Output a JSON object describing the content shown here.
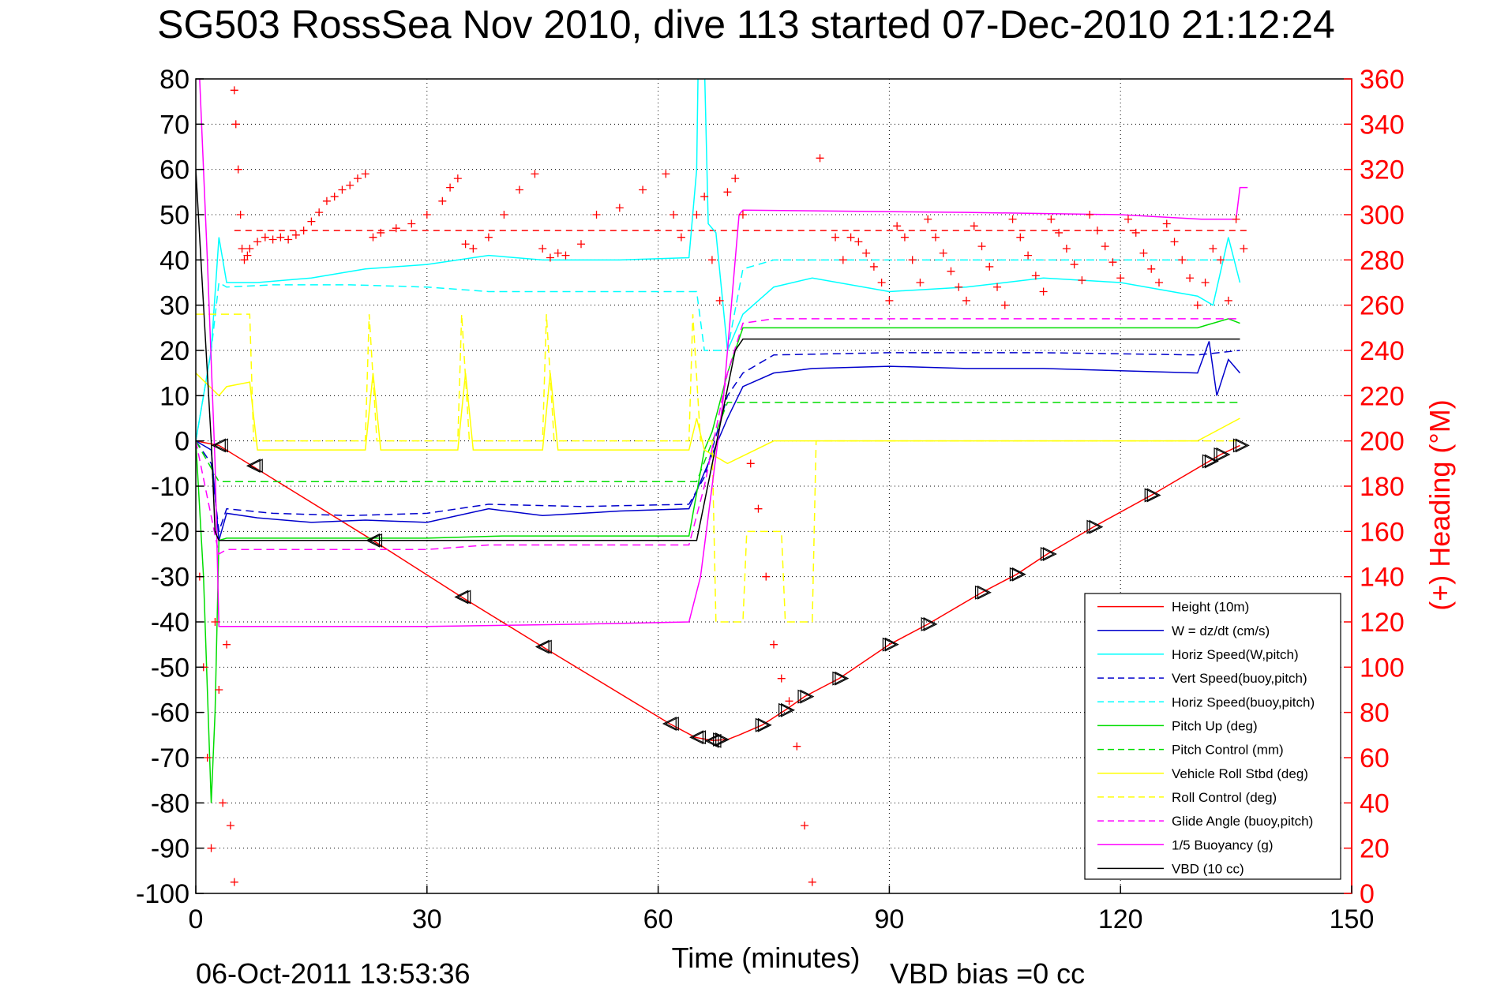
{
  "title": "SG503 RossSea Nov 2010, dive 113 started 07-Dec-2010 21:12:24",
  "footer": {
    "date": "06-Oct-2011 13:53:36",
    "vbd_bias": "VBD bias =0 cc"
  },
  "chart_data": {
    "type": "line",
    "xlabel": "Time (minutes)",
    "ylabel_right": "(+) Heading (°M)",
    "xlim": [
      0,
      150
    ],
    "ylim": [
      -100,
      80
    ],
    "ylim_right": [
      0,
      360
    ],
    "xticks": [
      "0",
      "30",
      "60",
      "90",
      "120",
      "150"
    ],
    "yticks": [
      "80",
      "70",
      "60",
      "50",
      "40",
      "30",
      "20",
      "10",
      "0",
      "-10",
      "-20",
      "-30",
      "-40",
      "-50",
      "-60",
      "-70",
      "-80",
      "-90",
      "-100"
    ],
    "yticks_right": [
      "360",
      "340",
      "320",
      "300",
      "280",
      "260",
      "240",
      "220",
      "200",
      "180",
      "160",
      "140",
      "120",
      "100",
      "80",
      "60",
      "40",
      "20",
      "0"
    ],
    "grid": true,
    "legend_position": "bottom-right",
    "colors": {
      "red": "#ff0000",
      "blue": "#0000cc",
      "cyan": "#00ffff",
      "green": "#00dd00",
      "yellow": "#ffff00",
      "magenta": "#ff00ff",
      "black": "#000000"
    },
    "series": [
      {
        "name": "Height (10m)",
        "color": "#ff0000",
        "dash": "solid",
        "x": [
          0,
          3,
          23,
          34.5,
          45,
          61.5,
          64.8,
          67,
          69,
          70.5,
          73.5,
          76.5,
          79,
          83.5,
          90,
          95,
          102,
          106.5,
          110.5,
          116.5,
          124,
          131.5,
          133,
          135.5
        ],
        "y": [
          0,
          -1,
          -22,
          -34.5,
          -45.5,
          -62.5,
          -65.5,
          -66.2,
          -66,
          -65,
          -62.8,
          -59.5,
          -56.5,
          -52.5,
          -45,
          -40.5,
          -33.5,
          -29.5,
          -25,
          -19,
          -12,
          -4.5,
          -3,
          -1
        ]
      },
      {
        "name": "W = dz/dt (cm/s)",
        "color": "#0000cc",
        "dash": "solid",
        "x": [
          0,
          1,
          2,
          2.5,
          3,
          4,
          8,
          15,
          22,
          30,
          38,
          45,
          55,
          64,
          65,
          67,
          69,
          71,
          75,
          80,
          90,
          100,
          110,
          120,
          130,
          131.5,
          132.5,
          134,
          135.5
        ],
        "y": [
          0,
          -1,
          -2,
          -12,
          -22,
          -16,
          -17,
          -18,
          -17.5,
          -18,
          -15,
          -16.5,
          -15.5,
          -15,
          -11,
          -3,
          5,
          12,
          15,
          16,
          16.5,
          16,
          16,
          15.5,
          15,
          22,
          10,
          18,
          15
        ]
      },
      {
        "name": "Horiz Speed(W,pitch)",
        "color": "#00ffff",
        "dash": "solid",
        "x": [
          0,
          2,
          3,
          4,
          8,
          15,
          22,
          30,
          38,
          45,
          55,
          64,
          65,
          65.5,
          66.5,
          67.5,
          69,
          71,
          75,
          80,
          90,
          100,
          110,
          120,
          130,
          132,
          134,
          135.5
        ],
        "y": [
          0,
          20,
          45,
          35,
          35,
          36,
          38,
          39,
          41,
          40,
          40,
          40.5,
          60,
          120,
          48,
          46,
          20,
          28,
          34,
          36,
          33,
          34,
          36,
          35,
          32,
          30,
          45,
          35
        ]
      },
      {
        "name": "Vert Speed(buoy,pitch)",
        "color": "#0000cc",
        "dash": "dashed",
        "x": [
          0,
          2,
          3,
          4,
          10,
          20,
          30,
          38,
          50,
          64,
          66,
          69,
          71,
          75,
          90,
          110,
          130,
          135.5
        ],
        "y": [
          0,
          -5,
          -20,
          -15,
          -16,
          -16.5,
          -16,
          -14,
          -14.5,
          -14,
          -8,
          10,
          15,
          19,
          19.5,
          19.5,
          19,
          20
        ]
      },
      {
        "name": "Horiz Speed(buoy,pitch)",
        "color": "#00ffff",
        "dash": "dashed",
        "x": [
          0,
          2,
          3,
          4,
          10,
          20,
          30,
          38,
          50,
          64,
          65,
          66,
          69,
          71,
          75,
          90,
          110,
          130,
          135.5
        ],
        "y": [
          0,
          20,
          35,
          34,
          34.5,
          34.5,
          34,
          33,
          33,
          33,
          33,
          20,
          20,
          38,
          40,
          40,
          40,
          40,
          40
        ]
      },
      {
        "name": "Pitch Up (deg)",
        "color": "#00dd00",
        "dash": "solid",
        "x": [
          0,
          1,
          2,
          2.5,
          3,
          4,
          10,
          20,
          30,
          40,
          50,
          64,
          66,
          67,
          69,
          71,
          75,
          90,
          110,
          130,
          134,
          135.5
        ],
        "y": [
          0,
          -30,
          -80,
          -60,
          -22,
          -21.5,
          -21.5,
          -21.5,
          -21.5,
          -21,
          -21,
          -21,
          -2,
          2,
          15,
          25,
          25,
          25,
          25,
          25,
          27,
          26
        ]
      },
      {
        "name": "Pitch Control (mm)",
        "color": "#00dd00",
        "dash": "dashed",
        "x": [
          0,
          3,
          4,
          64,
          65,
          69,
          71,
          135.5
        ],
        "y": [
          0,
          -9,
          -9,
          -9,
          -9,
          8.5,
          8.5,
          8.5
        ]
      },
      {
        "name": "Vehicle Roll Stbd (deg)",
        "color": "#ffff00",
        "dash": "solid",
        "x": [
          0,
          3,
          4,
          7,
          8,
          22,
          23,
          24,
          34,
          35,
          36,
          45,
          46,
          47,
          64,
          65,
          66,
          69,
          75,
          80,
          90,
          100,
          110,
          120,
          130,
          135.5
        ],
        "y": [
          15,
          10,
          12,
          13,
          -2,
          -2,
          15,
          -2,
          -2,
          15,
          -2,
          -2,
          15,
          -2,
          -2,
          5,
          -2,
          -5,
          0,
          0,
          0,
          0,
          0,
          0,
          0,
          5
        ]
      },
      {
        "name": "Roll Control (deg)",
        "color": "#ffff00",
        "dash": "dashed",
        "x": [
          0,
          2.5,
          3,
          7,
          7.5,
          22,
          22.5,
          23.5,
          34,
          34.5,
          35.5,
          45,
          45.5,
          46.5,
          64,
          64.5,
          65.5,
          67,
          67.5,
          71,
          71.5,
          76,
          76.5,
          80,
          80.5,
          135.5
        ],
        "y": [
          28,
          28,
          28,
          28,
          0,
          0,
          28,
          0,
          0,
          28,
          0,
          0,
          28,
          0,
          0,
          28,
          0,
          0,
          -40,
          -40,
          -20,
          -20,
          -40,
          -40,
          0,
          0
        ]
      },
      {
        "name": "Glide Angle (buoy,pitch)",
        "color": "#ff00ff",
        "dash": "dashed",
        "x": [
          0,
          3,
          4,
          10,
          20,
          30,
          38,
          50,
          64,
          66,
          69,
          71,
          75,
          90,
          110,
          130,
          135.5
        ],
        "y": [
          0,
          -25,
          -24,
          -24,
          -24,
          -24,
          -23,
          -23,
          -23,
          -10,
          15,
          26,
          27,
          27,
          27,
          27,
          27
        ]
      },
      {
        "name": "1/5 Buoyancy (g)",
        "color": "#ff00ff",
        "dash": "solid",
        "x": [
          0.5,
          1.5,
          2.5,
          3,
          10,
          30,
          50,
          64,
          65.5,
          68.5,
          70.5,
          71,
          100,
          120,
          130.5,
          135,
          135.5,
          136.5
        ],
        "y": [
          80,
          40,
          -5,
          -41,
          -41,
          -41,
          -40.5,
          -40,
          -30,
          10,
          50,
          51,
          50.5,
          50,
          49,
          49,
          56,
          56
        ]
      },
      {
        "name": "VBD (10 cc)",
        "color": "#000000",
        "dash": "solid",
        "x": [
          0,
          2,
          2.5,
          3,
          64.5,
          65,
          70,
          71,
          135.5
        ],
        "y": [
          60,
          0,
          -20,
          -22,
          -22,
          -22,
          20,
          22.5,
          22.5
        ]
      }
    ],
    "heading": {
      "name": "Heading",
      "marker": "+",
      "color": "#ff0000",
      "reference_deg": 293,
      "x": [
        0.5,
        1,
        1.5,
        2,
        2.5,
        3,
        3.5,
        4,
        4.5,
        5,
        5,
        5.2,
        5.5,
        5.8,
        6,
        6.3,
        6.7,
        7,
        8,
        9,
        10,
        11,
        12,
        13,
        14,
        15,
        16,
        17,
        18,
        19,
        20,
        21,
        22,
        23,
        24,
        26,
        28,
        30,
        32,
        33,
        34,
        35,
        36,
        38,
        40,
        42,
        44,
        45,
        46,
        47,
        48,
        50,
        52,
        55,
        58,
        61,
        62,
        63,
        65,
        66,
        67,
        68,
        69,
        70,
        71,
        72,
        73,
        74,
        75,
        76,
        77,
        78,
        79,
        80,
        81,
        83,
        84,
        85,
        86,
        87,
        88,
        89,
        90,
        91,
        92,
        93,
        94,
        95,
        96,
        97,
        98,
        99,
        100,
        101,
        102,
        103,
        104,
        105,
        106,
        107,
        108,
        109,
        110,
        111,
        112,
        113,
        114,
        115,
        116,
        117,
        118,
        119,
        120,
        121,
        122,
        123,
        124,
        125,
        126,
        127,
        128,
        129,
        130,
        131,
        132,
        133,
        134,
        135,
        136
      ],
      "y": [
        140,
        100,
        60,
        20,
        120,
        90,
        40,
        110,
        30,
        5,
        355,
        340,
        320,
        300,
        285,
        280,
        282,
        285,
        288,
        290,
        289,
        290,
        289,
        291,
        293,
        297,
        301,
        306,
        308,
        311,
        313,
        316,
        318,
        290,
        292,
        294,
        296,
        300,
        306,
        312,
        316,
        287,
        285,
        290,
        300,
        311,
        318,
        285,
        281,
        283,
        282,
        287,
        300,
        303,
        311,
        318,
        300,
        290,
        300,
        308,
        280,
        262,
        310,
        316,
        300,
        190,
        170,
        140,
        110,
        95,
        85,
        65,
        30,
        5,
        325,
        290,
        280,
        290,
        288,
        283,
        277,
        270,
        262,
        295,
        290,
        280,
        270,
        298,
        290,
        283,
        275,
        268,
        262,
        295,
        286,
        277,
        268,
        260,
        298,
        290,
        282,
        273,
        266,
        298,
        292,
        285,
        278,
        271,
        300,
        293,
        286,
        279,
        272,
        298,
        292,
        283,
        276,
        270,
        296,
        288,
        280,
        272,
        260,
        270,
        285,
        280,
        262,
        298,
        285
      ]
    },
    "markers": {
      "name": "Height markers",
      "x": [
        3,
        7.5,
        23,
        34.5,
        45,
        61.5,
        65,
        67,
        68,
        73.5,
        76.5,
        79,
        83.5,
        90,
        95,
        102,
        106.5,
        110.5,
        116.5,
        124,
        131.5,
        133,
        135.5
      ],
      "y": [
        -1,
        -5.5,
        -22,
        -34.5,
        -45.5,
        -62.5,
        -65.5,
        -66.3,
        -66,
        -62.8,
        -59.5,
        -56.5,
        -52.5,
        -45,
        -40.5,
        -33.5,
        -29.5,
        -25,
        -19,
        -12,
        -4.5,
        -3,
        -1
      ]
    }
  }
}
